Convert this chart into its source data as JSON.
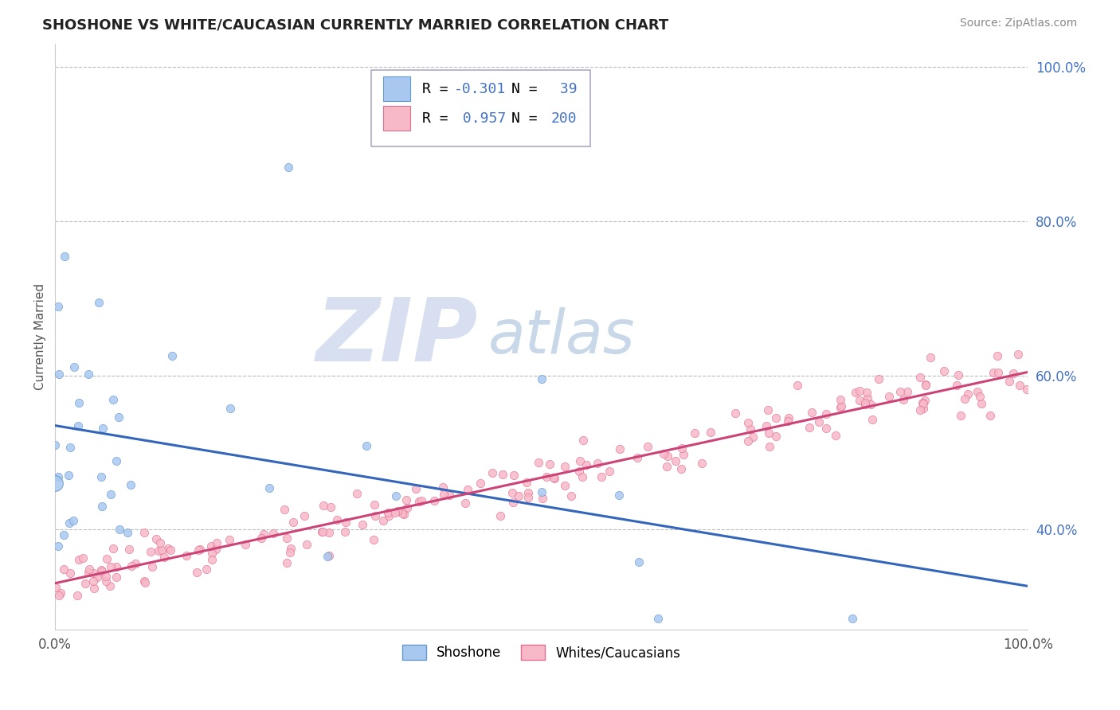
{
  "title": "SHOSHONE VS WHITE/CAUCASIAN CURRENTLY MARRIED CORRELATION CHART",
  "source_text": "Source: ZipAtlas.com",
  "ylabel": "Currently Married",
  "xmin": 0.0,
  "xmax": 1.0,
  "ymin": 0.27,
  "ymax": 1.03,
  "right_ytick_vals": [
    0.4,
    0.6,
    0.8,
    1.0
  ],
  "right_yticklabels": [
    "40.0%",
    "60.0%",
    "80.0%",
    "100.0%"
  ],
  "shoshone_color": "#a8c8f0",
  "shoshone_edge": "#6699cc",
  "caucasian_color": "#f7b8c8",
  "caucasian_edge": "#e07090",
  "trend_blue": "#3366bb",
  "trend_pink": "#cc4477",
  "R_shoshone": -0.301,
  "N_shoshone": 39,
  "R_caucasian": 0.957,
  "N_caucasian": 200,
  "background_color": "#ffffff",
  "grid_color": "#bbbbbb",
  "right_tick_color": "#4472c4",
  "watermark_zip_color": "#d8dff0",
  "watermark_atlas_color": "#c8d8e8",
  "legend_label_shoshone": "Shoshone",
  "legend_label_caucasian": "Whites/Caucasians",
  "title_color": "#222222",
  "source_color": "#888888"
}
